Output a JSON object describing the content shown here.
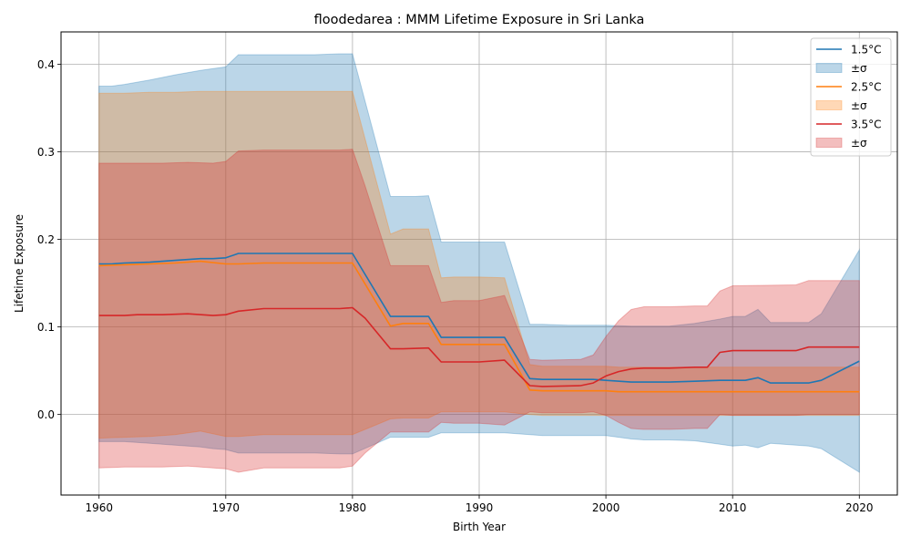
{
  "chart_data": {
    "type": "line",
    "title": "floodedarea : MMM Lifetime Exposure in Sri Lanka",
    "xlabel": "Birth Year",
    "ylabel": "Lifetime Exposure",
    "xlim": [
      1957,
      2023
    ],
    "ylim": [
      -0.092,
      0.437
    ],
    "xticks": [
      1960,
      1970,
      1980,
      1990,
      2000,
      2010,
      2020
    ],
    "xtick_labels": [
      "1960",
      "1970",
      "1980",
      "1990",
      "2000",
      "2010",
      "2020"
    ],
    "yticks": [
      0.0,
      0.1,
      0.2,
      0.3,
      0.4
    ],
    "ytick_labels": [
      "0.0",
      "0.1",
      "0.2",
      "0.3",
      "0.4"
    ],
    "grid": true,
    "legend_position": "upper right",
    "series": [
      {
        "name": "1.5°C",
        "band_name": "±σ",
        "color": "#1f77b4",
        "band_color": "#1f77b4",
        "band_alpha": 0.3,
        "x": [
          1960,
          1961,
          1962,
          1964,
          1966,
          1968,
          1969,
          1970,
          1971,
          1973,
          1975,
          1977,
          1979,
          1980,
          1983,
          1984,
          1985,
          1986,
          1987,
          1988,
          1990,
          1992,
          1994,
          1995,
          1997,
          1999,
          2000,
          2002,
          2003,
          2005,
          2007,
          2009,
          2010,
          2011,
          2012,
          2013,
          2015,
          2016,
          2017,
          2020
        ],
        "values": [
          0.172,
          0.172,
          0.173,
          0.174,
          0.176,
          0.178,
          0.178,
          0.179,
          0.184,
          0.184,
          0.184,
          0.184,
          0.184,
          0.184,
          0.112,
          0.112,
          0.112,
          0.112,
          0.088,
          0.088,
          0.088,
          0.088,
          0.041,
          0.04,
          0.04,
          0.04,
          0.039,
          0.037,
          0.037,
          0.037,
          0.038,
          0.039,
          0.039,
          0.039,
          0.042,
          0.036,
          0.036,
          0.036,
          0.039,
          0.061
        ],
        "upper": [
          0.375,
          0.375,
          0.377,
          0.382,
          0.388,
          0.393,
          0.395,
          0.397,
          0.411,
          0.411,
          0.411,
          0.411,
          0.412,
          0.412,
          0.249,
          0.249,
          0.249,
          0.25,
          0.197,
          0.197,
          0.197,
          0.197,
          0.103,
          0.103,
          0.102,
          0.102,
          0.102,
          0.101,
          0.101,
          0.101,
          0.104,
          0.109,
          0.112,
          0.112,
          0.12,
          0.105,
          0.105,
          0.105,
          0.115,
          0.188
        ],
        "lower": [
          -0.031,
          -0.031,
          -0.031,
          -0.033,
          -0.035,
          -0.037,
          -0.039,
          -0.04,
          -0.044,
          -0.044,
          -0.044,
          -0.044,
          -0.045,
          -0.045,
          -0.026,
          -0.026,
          -0.026,
          -0.026,
          -0.021,
          -0.021,
          -0.021,
          -0.021,
          -0.023,
          -0.024,
          -0.024,
          -0.024,
          -0.024,
          -0.028,
          -0.029,
          -0.029,
          -0.03,
          -0.034,
          -0.036,
          -0.035,
          -0.038,
          -0.033,
          -0.035,
          -0.036,
          -0.039,
          -0.066
        ]
      },
      {
        "name": "2.5°C",
        "band_name": "±σ",
        "color": "#ff7f0e",
        "band_color": "#ff7f0e",
        "band_alpha": 0.3,
        "x": [
          1960,
          1962,
          1964,
          1966,
          1968,
          1970,
          1971,
          1973,
          1975,
          1977,
          1979,
          1980,
          1983,
          1984,
          1985,
          1986,
          1987,
          1988,
          1990,
          1992,
          1994,
          1995,
          1997,
          1999,
          2000,
          2001,
          2002,
          2005,
          2010,
          2015,
          2020
        ],
        "values": [
          0.17,
          0.171,
          0.172,
          0.173,
          0.175,
          0.172,
          0.172,
          0.173,
          0.173,
          0.173,
          0.173,
          0.173,
          0.101,
          0.104,
          0.104,
          0.104,
          0.08,
          0.08,
          0.08,
          0.08,
          0.028,
          0.027,
          0.027,
          0.027,
          0.027,
          0.026,
          0.026,
          0.026,
          0.026,
          0.026,
          0.026
        ],
        "upper": [
          0.367,
          0.367,
          0.368,
          0.368,
          0.369,
          0.369,
          0.369,
          0.369,
          0.369,
          0.369,
          0.369,
          0.369,
          0.206,
          0.212,
          0.212,
          0.212,
          0.156,
          0.157,
          0.157,
          0.156,
          0.057,
          0.055,
          0.055,
          0.055,
          0.055,
          0.054,
          0.054,
          0.054,
          0.054,
          0.054,
          0.054
        ],
        "lower": [
          -0.027,
          -0.026,
          -0.025,
          -0.023,
          -0.019,
          -0.025,
          -0.025,
          -0.023,
          -0.023,
          -0.023,
          -0.023,
          -0.023,
          -0.005,
          -0.004,
          -0.004,
          -0.004,
          0.003,
          0.003,
          0.003,
          0.003,
          0.0,
          -0.001,
          -0.001,
          -0.001,
          -0.001,
          -0.001,
          -0.001,
          -0.001,
          -0.001,
          -0.001,
          -0.001
        ]
      },
      {
        "name": "3.5°C",
        "band_name": "±σ",
        "color": "#d62728",
        "band_color": "#d62728",
        "band_alpha": 0.3,
        "x": [
          1960,
          1962,
          1963,
          1965,
          1967,
          1969,
          1970,
          1971,
          1973,
          1975,
          1977,
          1979,
          1980,
          1981,
          1983,
          1984,
          1986,
          1987,
          1988,
          1990,
          1992,
          1994,
          1995,
          1998,
          1999,
          2000,
          2001,
          2002,
          2003,
          2005,
          2007,
          2008,
          2009,
          2010,
          2015,
          2016,
          2020
        ],
        "values": [
          0.113,
          0.113,
          0.114,
          0.114,
          0.115,
          0.113,
          0.114,
          0.118,
          0.121,
          0.121,
          0.121,
          0.121,
          0.122,
          0.11,
          0.075,
          0.075,
          0.076,
          0.06,
          0.06,
          0.06,
          0.062,
          0.033,
          0.032,
          0.033,
          0.036,
          0.044,
          0.049,
          0.052,
          0.053,
          0.053,
          0.054,
          0.054,
          0.071,
          0.073,
          0.073,
          0.077,
          0.077
        ],
        "upper": [
          0.287,
          0.287,
          0.287,
          0.287,
          0.288,
          0.287,
          0.289,
          0.301,
          0.302,
          0.302,
          0.302,
          0.302,
          0.303,
          0.261,
          0.17,
          0.17,
          0.17,
          0.128,
          0.13,
          0.13,
          0.136,
          0.063,
          0.062,
          0.063,
          0.068,
          0.089,
          0.107,
          0.12,
          0.123,
          0.123,
          0.124,
          0.124,
          0.141,
          0.147,
          0.148,
          0.153,
          0.153
        ],
        "lower": [
          -0.061,
          -0.06,
          -0.06,
          -0.06,
          -0.059,
          -0.061,
          -0.062,
          -0.066,
          -0.061,
          -0.061,
          -0.061,
          -0.061,
          -0.059,
          -0.044,
          -0.02,
          -0.02,
          -0.02,
          -0.009,
          -0.01,
          -0.01,
          -0.012,
          0.003,
          0.002,
          0.002,
          0.003,
          -0.001,
          -0.009,
          -0.016,
          -0.017,
          -0.017,
          -0.016,
          -0.016,
          0.0,
          -0.001,
          -0.001,
          0.0,
          0.0
        ]
      }
    ]
  }
}
